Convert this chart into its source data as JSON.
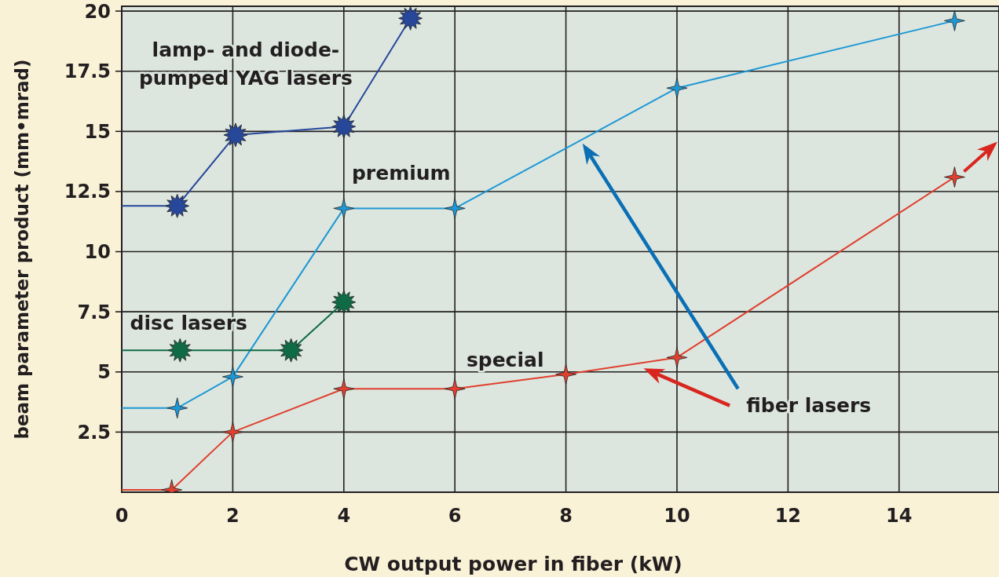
{
  "chart_data": {
    "type": "line",
    "xlabel": "CW output power in fiber (kW)",
    "ylabel": "beam parameter product (mm•mrad)",
    "xlim": [
      0,
      15.8
    ],
    "ylim": [
      0,
      20.2
    ],
    "xticks": [
      0,
      2,
      4,
      6,
      8,
      10,
      12,
      14
    ],
    "yticks": [
      2.5,
      5,
      7.5,
      10,
      12.5,
      15,
      17.5,
      20
    ],
    "grid": true,
    "marker": "star",
    "series": [
      {
        "name": "lamp- and diode-\npumped YAG lasers",
        "color": "#27479a",
        "x": [
          0,
          1,
          2.05,
          4,
          5.2
        ],
        "values": [
          11.9,
          11.9,
          14.85,
          15.2,
          19.7
        ]
      },
      {
        "name": "premium",
        "color": "#1e98d4",
        "x": [
          0,
          1,
          2,
          4,
          6,
          10,
          15
        ],
        "values": [
          3.5,
          3.5,
          4.8,
          11.8,
          11.8,
          16.8,
          19.6
        ]
      },
      {
        "name": "disc lasers",
        "color": "#0f6b45",
        "x": [
          0,
          1.05,
          3.05,
          4
        ],
        "values": [
          5.9,
          5.9,
          5.9,
          7.9
        ]
      },
      {
        "name": "special",
        "color": "#e0402f",
        "x": [
          0,
          0.9,
          2,
          4,
          6,
          8,
          10,
          15
        ],
        "values": [
          0.1,
          0.1,
          2.5,
          4.3,
          4.3,
          4.9,
          5.6,
          13.1
        ]
      }
    ],
    "annotations": [
      "fiber lasers"
    ]
  }
}
